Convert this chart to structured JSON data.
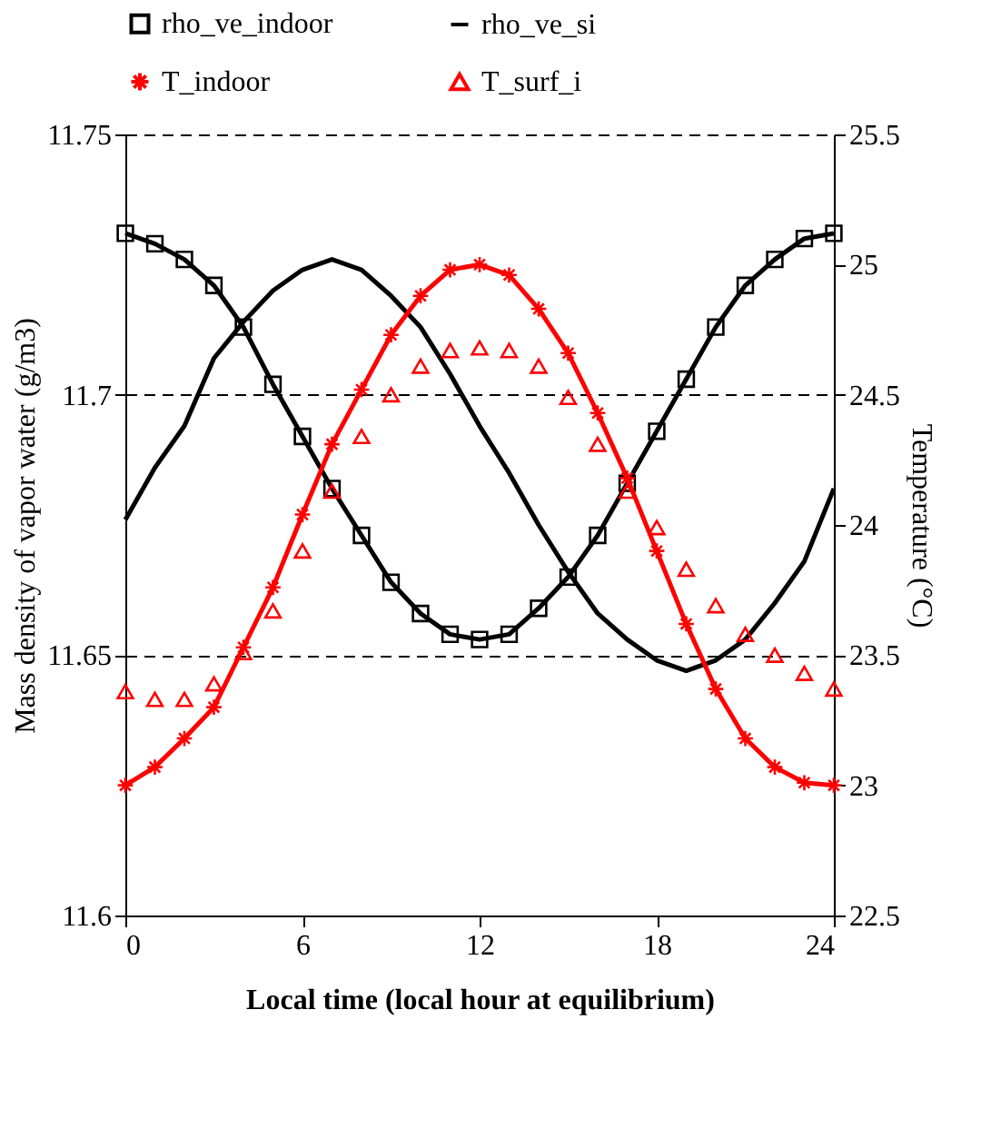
{
  "chart_data": {
    "type": "line",
    "xlabel": "Local time (local hour at equilibrium)",
    "ylabel": "Mass density of vapor water (g/m3)",
    "y2label": "Temperature (°C)",
    "x": [
      0,
      1,
      2,
      3,
      4,
      5,
      6,
      7,
      8,
      9,
      10,
      11,
      12,
      13,
      14,
      15,
      16,
      17,
      18,
      19,
      20,
      21,
      22,
      23,
      24
    ],
    "xlim": [
      0,
      24
    ],
    "xticks": [
      0,
      6,
      12,
      18,
      24
    ],
    "ylim": [
      11.6,
      11.75
    ],
    "yticks": [
      11.6,
      11.65,
      11.7,
      11.75
    ],
    "y2lim": [
      22.5,
      25.5
    ],
    "y2ticks": [
      22.5,
      23,
      23.5,
      24,
      24.5,
      25,
      25.5
    ],
    "grid": "y",
    "legend": "top",
    "series": [
      {
        "name": "rho_ve_indoor",
        "type": "line",
        "color": "#000000",
        "marker": "square",
        "line_style": "solid",
        "values": [
          11.731,
          11.729,
          11.726,
          11.721,
          11.713,
          11.702,
          11.692,
          11.682,
          11.673,
          11.664,
          11.658,
          11.654,
          11.653,
          11.654,
          11.659,
          11.665,
          11.673,
          11.683,
          11.693,
          11.703,
          11.713,
          11.721,
          11.726,
          11.73,
          11.731
        ]
      },
      {
        "name": "rho_ve_si",
        "type": "line",
        "color": "#000000",
        "marker": "none",
        "line_style": "solid",
        "values": [
          11.676,
          11.686,
          11.694,
          11.707,
          11.714,
          11.72,
          11.724,
          11.726,
          11.724,
          11.719,
          11.713,
          11.704,
          11.694,
          11.685,
          11.675,
          11.666,
          11.658,
          11.653,
          11.649,
          11.647,
          11.649,
          11.653,
          11.66,
          11.668,
          11.682
        ]
      },
      {
        "name": "T_indoor",
        "type": "line",
        "axis": "y2",
        "color": "#ff0000",
        "marker": "cross",
        "line_style": "solid",
        "values": [
          23.0,
          23.07,
          23.18,
          23.3,
          23.53,
          23.76,
          24.04,
          24.31,
          24.52,
          24.73,
          24.88,
          24.98,
          25.0,
          24.96,
          24.83,
          24.66,
          24.43,
          24.18,
          23.9,
          23.62,
          23.37,
          23.18,
          23.07,
          23.01,
          23.0
        ]
      },
      {
        "name": "T_surf_i",
        "type": "scatter",
        "axis": "y2",
        "color": "#ff0000",
        "marker": "triangle",
        "values": [
          23.36,
          23.33,
          23.33,
          23.39,
          23.51,
          23.67,
          23.9,
          24.13,
          24.34,
          24.5,
          24.61,
          24.67,
          24.68,
          24.67,
          24.61,
          24.49,
          24.31,
          24.13,
          23.99,
          23.83,
          23.69,
          23.58,
          23.5,
          23.43,
          23.37
        ]
      }
    ]
  }
}
